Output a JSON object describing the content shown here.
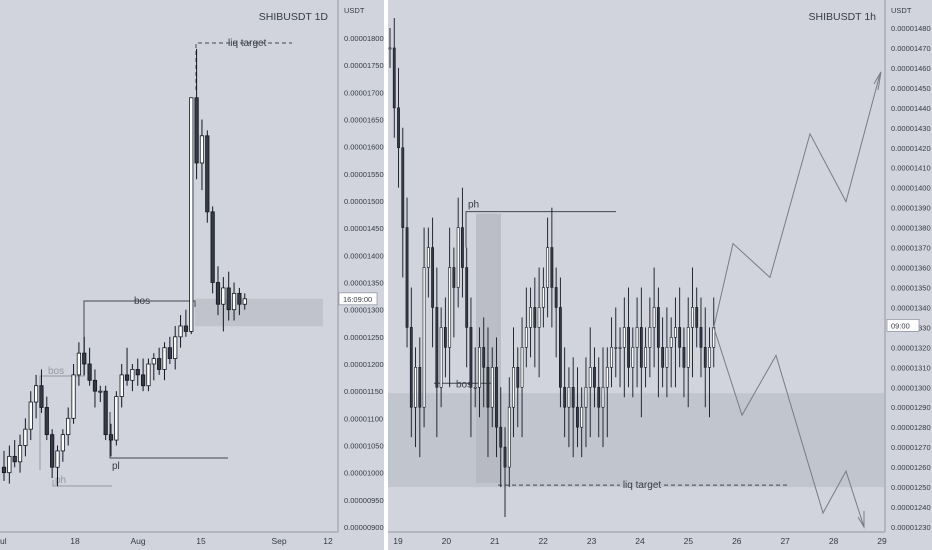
{
  "left_chart_title": "SHIBUSDT 1D",
  "right_chart_title": "SHIBUSDT 1h",
  "chart_data": [
    {
      "type": "candlestick",
      "title": "SHIBUSDT 1D",
      "ylabel": "USDT",
      "y_ticks": [
        "0.00001800",
        "0.00001750",
        "0.00001700",
        "0.00001650",
        "0.00001600",
        "0.00001550",
        "0.00001500",
        "0.00001450",
        "0.00001400",
        "0.00001350",
        "0.00001300",
        "0.00001250",
        "0.00001200",
        "0.00001150",
        "0.00001100",
        "0.00001050",
        "0.00001000",
        "0.00000950",
        "0.00000900"
      ],
      "ylim": [
        8.9e-06,
        1.84e-05
      ],
      "x_ticks": [
        "ul",
        "18",
        "Aug",
        "15",
        "Sep",
        "12"
      ],
      "price_tag": "16:09:00",
      "annotations": [
        "liq target",
        "bos",
        "bos",
        "pl",
        "ph"
      ],
      "ohlc": [
        [
          1.01e-05,
          1.04e-05,
          9.85e-06,
          1e-05
        ],
        [
          1e-05,
          1.05e-05,
          9.8e-06,
          1.03e-05
        ],
        [
          1.03e-05,
          1.06e-05,
          1.01e-05,
          1.02e-05
        ],
        [
          1.02e-05,
          1.07e-05,
          1e-05,
          1.05e-05
        ],
        [
          1.05e-05,
          1.1e-05,
          1.03e-05,
          1.08e-05
        ],
        [
          1.08e-05,
          1.15e-05,
          1.06e-05,
          1.13e-05
        ],
        [
          1.13e-05,
          1.18e-05,
          1.1e-05,
          1.16e-05
        ],
        [
          1.16e-05,
          1.19e-05,
          1.11e-05,
          1.12e-05
        ],
        [
          1.12e-05,
          1.14e-05,
          1.06e-05,
          1.07e-05
        ],
        [
          1.07e-05,
          1.08e-05,
          9.9e-06,
          1.01e-05
        ],
        [
          1.01e-05,
          1.05e-05,
          9.75e-06,
          1.04e-05
        ],
        [
          1.04e-05,
          1.08e-05,
          1.02e-05,
          1.07e-05
        ],
        [
          1.07e-05,
          1.12e-05,
          1.05e-05,
          1.1e-05
        ],
        [
          1.1e-05,
          1.2e-05,
          1.09e-05,
          1.18e-05
        ],
        [
          1.18e-05,
          1.24e-05,
          1.16e-05,
          1.22e-05
        ],
        [
          1.22e-05,
          1.25e-05,
          1.18e-05,
          1.2e-05
        ],
        [
          1.2e-05,
          1.23e-05,
          1.16e-05,
          1.17e-05
        ],
        [
          1.17e-05,
          1.19e-05,
          1.12e-05,
          1.15e-05
        ],
        [
          1.15e-05,
          1.16e-05,
          1.13e-05,
          1.15e-05
        ],
        [
          1.15e-05,
          1.16e-05,
          1.06e-05,
          1.07e-05
        ],
        [
          1.07e-05,
          1.09e-05,
          1.03e-05,
          1.06e-05
        ],
        [
          1.06e-05,
          1.15e-05,
          1.05e-05,
          1.14e-05
        ],
        [
          1.14e-05,
          1.2e-05,
          1.12e-05,
          1.18e-05
        ],
        [
          1.18e-05,
          1.23e-05,
          1.16e-05,
          1.17e-05
        ],
        [
          1.17e-05,
          1.2e-05,
          1.15e-05,
          1.19e-05
        ],
        [
          1.19e-05,
          1.21e-05,
          1.16e-05,
          1.18e-05
        ],
        [
          1.18e-05,
          1.21e-05,
          1.15e-05,
          1.16e-05
        ],
        [
          1.16e-05,
          1.21e-05,
          1.15e-05,
          1.2e-05
        ],
        [
          1.2e-05,
          1.22e-05,
          1.17e-05,
          1.21e-05
        ],
        [
          1.21e-05,
          1.23e-05,
          1.18e-05,
          1.19e-05
        ],
        [
          1.19e-05,
          1.24e-05,
          1.17e-05,
          1.23e-05
        ],
        [
          1.23e-05,
          1.25e-05,
          1.2e-05,
          1.21e-05
        ],
        [
          1.21e-05,
          1.27e-05,
          1.19e-05,
          1.25e-05
        ],
        [
          1.25e-05,
          1.29e-05,
          1.23e-05,
          1.27e-05
        ],
        [
          1.27e-05,
          1.3e-05,
          1.25e-05,
          1.26e-05
        ],
        [
          1.26e-05,
          1.69e-05,
          1.255e-05,
          1.69e-05
        ],
        [
          1.69e-05,
          1.78e-05,
          1.54e-05,
          1.57e-05
        ],
        [
          1.57e-05,
          1.65e-05,
          1.52e-05,
          1.62e-05
        ],
        [
          1.62e-05,
          1.63e-05,
          1.46e-05,
          1.48e-05
        ],
        [
          1.48e-05,
          1.49e-05,
          1.33e-05,
          1.35e-05
        ],
        [
          1.35e-05,
          1.38e-05,
          1.29e-05,
          1.31e-05
        ],
        [
          1.31e-05,
          1.36e-05,
          1.26e-05,
          1.34e-05
        ],
        [
          1.34e-05,
          1.37e-05,
          1.28e-05,
          1.3e-05
        ],
        [
          1.3e-05,
          1.35e-05,
          1.28e-05,
          1.33e-05
        ],
        [
          1.33e-05,
          1.34e-05,
          1.29e-05,
          1.31e-05
        ],
        [
          1.31e-05,
          1.33e-05,
          1.3e-05,
          1.32e-05
        ]
      ]
    },
    {
      "type": "candlestick",
      "title": "SHIBUSDT 1h",
      "ylabel": "USDT",
      "y_ticks": [
        "0.00001480",
        "0.00001470",
        "0.00001460",
        "0.00001450",
        "0.00001440",
        "0.00001430",
        "0.00001420",
        "0.00001410",
        "0.00001400",
        "0.00001390",
        "0.00001380",
        "0.00001370",
        "0.00001360",
        "0.00001350",
        "0.00001340",
        "0.00001330",
        "0.00001320",
        "0.00001310",
        "0.00001300",
        "0.00001290",
        "0.00001280",
        "0.00001270",
        "0.00001260",
        "0.00001250",
        "0.00001240",
        "0.00001230"
      ],
      "ylim": [
        1.227e-05,
        1.484e-05
      ],
      "x_ticks": [
        "19",
        "20",
        "21",
        "22",
        "23",
        "24",
        "25",
        "26",
        "27",
        "28",
        "29"
      ],
      "price_tag": "09:00",
      "annotations": [
        "ph",
        "bos",
        "liq target"
      ],
      "close_path": [
        [
          0.0,
          1.47e-05
        ],
        [
          0.2,
          1.44e-05
        ],
        [
          0.4,
          1.42e-05
        ],
        [
          0.6,
          1.38e-05
        ],
        [
          0.8,
          1.33e-05
        ],
        [
          1.0,
          1.29e-05
        ],
        [
          1.2,
          1.31e-05
        ],
        [
          1.4,
          1.29e-05
        ],
        [
          1.6,
          1.36e-05
        ],
        [
          1.8,
          1.37e-05
        ],
        [
          2.0,
          1.34e-05
        ],
        [
          2.2,
          1.3e-05
        ],
        [
          2.4,
          1.33e-05
        ],
        [
          2.6,
          1.32e-05
        ],
        [
          2.8,
          1.36e-05
        ],
        [
          3.0,
          1.35e-05
        ],
        [
          3.2,
          1.38e-05
        ],
        [
          3.4,
          1.36e-05
        ],
        [
          3.6,
          1.33e-05
        ],
        [
          3.8,
          1.3e-05
        ],
        [
          4.0,
          1.3e-05
        ],
        [
          4.2,
          1.32e-05
        ],
        [
          4.4,
          1.31e-05
        ],
        [
          4.6,
          1.29e-05
        ],
        [
          4.8,
          1.31e-05
        ],
        [
          5.0,
          1.28e-05
        ],
        [
          5.2,
          1.27e-05
        ],
        [
          5.4,
          1.26e-05
        ],
        [
          5.6,
          1.29e-05
        ],
        [
          5.8,
          1.31e-05
        ],
        [
          6.0,
          1.3e-05
        ],
        [
          6.2,
          1.32e-05
        ],
        [
          6.4,
          1.33e-05
        ],
        [
          6.6,
          1.34e-05
        ],
        [
          6.8,
          1.33e-05
        ],
        [
          7.0,
          1.34e-05
        ],
        [
          7.2,
          1.35e-05
        ],
        [
          7.4,
          1.37e-05
        ],
        [
          7.6,
          1.35e-05
        ],
        [
          7.8,
          1.34e-05
        ],
        [
          8.0,
          1.3e-05
        ],
        [
          8.2,
          1.29e-05
        ],
        [
          8.4,
          1.3e-05
        ],
        [
          8.6,
          1.29e-05
        ],
        [
          8.8,
          1.28e-05
        ],
        [
          9.0,
          1.29e-05
        ],
        [
          9.2,
          1.3e-05
        ],
        [
          9.4,
          1.31e-05
        ],
        [
          9.6,
          1.3e-05
        ],
        [
          9.8,
          1.29e-05
        ],
        [
          10.0,
          1.3e-05
        ],
        [
          10.2,
          1.31e-05
        ],
        [
          10.4,
          1.32e-05
        ],
        [
          10.6,
          1.32e-05
        ],
        [
          10.8,
          1.32e-05
        ],
        [
          11.0,
          1.33e-05
        ],
        [
          11.2,
          1.31e-05
        ],
        [
          11.4,
          1.32e-05
        ],
        [
          11.6,
          1.33e-05
        ],
        [
          11.8,
          1.31e-05
        ],
        [
          12.0,
          1.32e-05
        ],
        [
          12.2,
          1.33e-05
        ],
        [
          12.4,
          1.34e-05
        ],
        [
          12.6,
          1.32e-05
        ],
        [
          12.8,
          1.31e-05
        ],
        [
          13.0,
          1.32e-05
        ],
        [
          13.2,
          1.325e-05
        ],
        [
          13.4,
          1.33e-05
        ],
        [
          13.6,
          1.32e-05
        ],
        [
          13.8,
          1.31e-05
        ],
        [
          14.0,
          1.33e-05
        ],
        [
          14.2,
          1.34e-05
        ],
        [
          14.4,
          1.33e-05
        ],
        [
          14.6,
          1.32e-05
        ],
        [
          14.8,
          1.31e-05
        ],
        [
          15.0,
          1.32e-05
        ],
        [
          15.2,
          1.33e-05
        ]
      ]
    }
  ]
}
